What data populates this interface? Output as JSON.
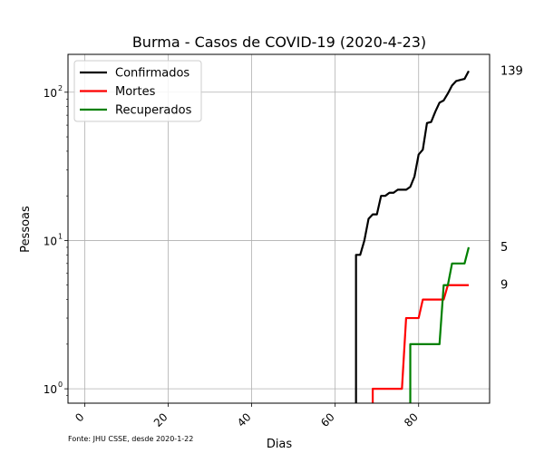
{
  "chart_data": {
    "type": "line",
    "title": "Burma - Casos de COVID-19 (2020-4-23)",
    "xlabel": "Dias",
    "ylabel": "Pessoas",
    "source": "Fonte: JHU CSSE, desde 2020-1-22",
    "xlim": [
      -4,
      97
    ],
    "ylim": [
      0.8,
      180
    ],
    "yscale": "log",
    "grid": true,
    "legend_position": "top-left",
    "x_ticks": [
      0,
      20,
      40,
      60,
      80
    ],
    "y_ticks": [
      {
        "value": 1,
        "label": "10",
        "exp": "0"
      },
      {
        "value": 10,
        "label": "10",
        "exp": "1"
      },
      {
        "value": 100,
        "label": "10",
        "exp": "2"
      }
    ],
    "end_labels": [
      "139",
      "9",
      "5"
    ],
    "series": [
      {
        "name": "Confirmados",
        "color": "#000000",
        "x": [
          65,
          66,
          67,
          68,
          69,
          70,
          71,
          72,
          73,
          74,
          75,
          76,
          77,
          78,
          79,
          80,
          81,
          82,
          83,
          84,
          85,
          86,
          87,
          88,
          89,
          90,
          91,
          92
        ],
        "y": [
          8,
          8,
          10,
          14,
          15,
          15,
          20,
          20,
          21,
          21,
          22,
          22,
          22,
          23,
          27,
          38,
          41,
          62,
          63,
          74,
          85,
          88,
          98,
          111,
          119,
          121,
          123,
          139
        ]
      },
      {
        "name": "Mortes",
        "color": "#ff0000",
        "x": [
          69,
          70,
          71,
          72,
          73,
          74,
          75,
          76,
          77,
          78,
          79,
          80,
          81,
          82,
          83,
          84,
          85,
          86,
          87,
          88,
          89,
          90,
          91,
          92
        ],
        "y": [
          1,
          1,
          1,
          1,
          1,
          1,
          1,
          1,
          3,
          3,
          3,
          3,
          4,
          4,
          4,
          4,
          4,
          4,
          5,
          5,
          5,
          5,
          5,
          5
        ]
      },
      {
        "name": "Recuperados",
        "color": "#008000",
        "x": [
          78,
          79,
          80,
          81,
          82,
          83,
          84,
          85,
          86,
          87,
          88,
          89,
          90,
          91,
          92
        ],
        "y": [
          2,
          2,
          2,
          2,
          2,
          2,
          2,
          2,
          5,
          5,
          7,
          7,
          7,
          7,
          9
        ]
      }
    ]
  }
}
